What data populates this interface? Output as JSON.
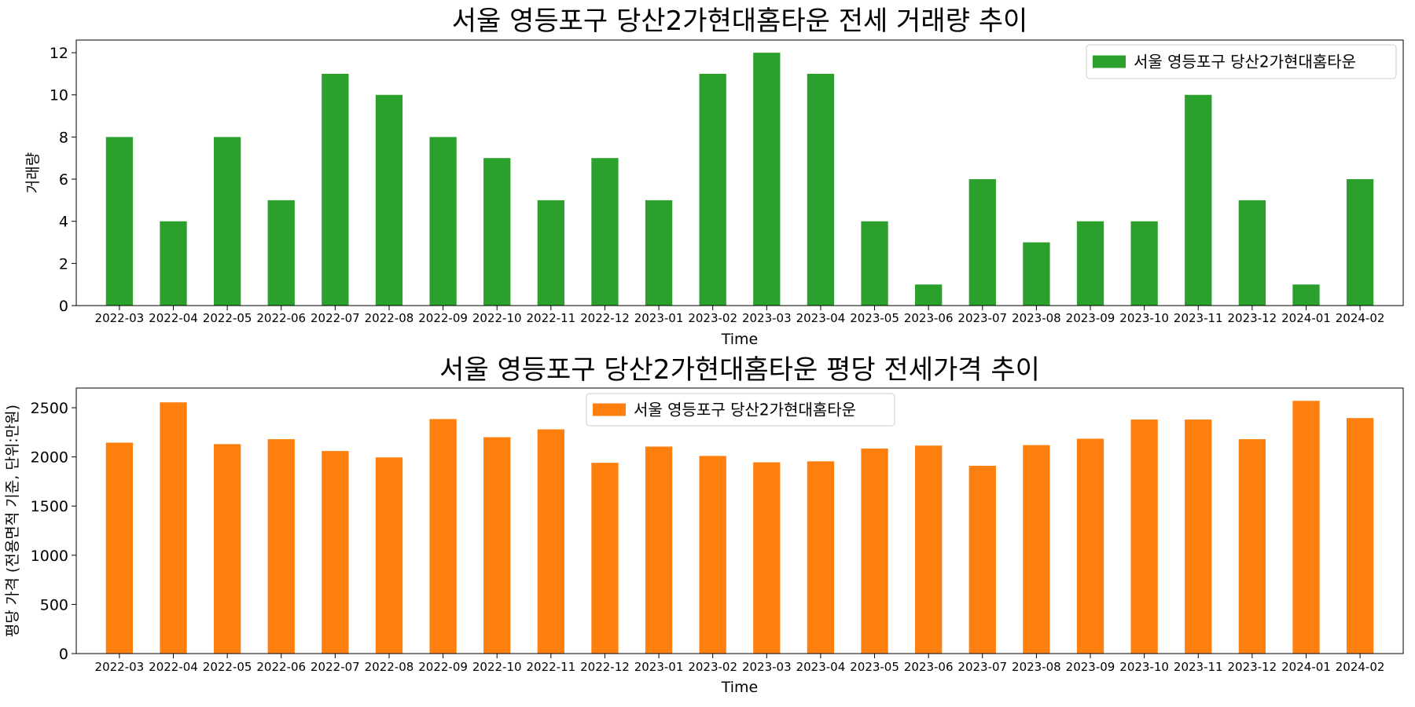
{
  "chart_data": [
    {
      "type": "bar",
      "title": "서울 영등포구 당산2가현대홈타운 전세 거래량 추이",
      "xlabel": "Time",
      "ylabel": "거래량",
      "ylim": [
        0,
        12.6
      ],
      "yticks": [
        0,
        2,
        4,
        6,
        8,
        10,
        12
      ],
      "legend_placement": "upper right",
      "color": "#2ca02c",
      "categories": [
        "2022-03",
        "2022-04",
        "2022-05",
        "2022-06",
        "2022-07",
        "2022-08",
        "2022-09",
        "2022-10",
        "2022-11",
        "2022-12",
        "2023-01",
        "2023-02",
        "2023-03",
        "2023-04",
        "2023-05",
        "2023-06",
        "2023-07",
        "2023-08",
        "2023-09",
        "2023-10",
        "2023-11",
        "2023-12",
        "2024-01",
        "2024-02"
      ],
      "series": [
        {
          "name": "서울 영등포구 당산2가현대홈타운",
          "values": [
            8,
            4,
            8,
            5,
            11,
            10,
            8,
            7,
            5,
            7,
            5,
            11,
            12,
            11,
            4,
            1,
            6,
            3,
            4,
            4,
            10,
            5,
            1,
            6
          ]
        }
      ]
    },
    {
      "type": "bar",
      "title": "서울 영등포구 당산2가현대홈타운 평당 전세가격 추이",
      "xlabel": "Time",
      "ylabel": "평당 가격 (전용면적 기준, 단위:만원)",
      "ylim": [
        0,
        2700
      ],
      "yticks": [
        0,
        500,
        1000,
        1500,
        2000,
        2500
      ],
      "legend_placement": "upper center",
      "color": "#ff7f0e",
      "categories": [
        "2022-03",
        "2022-04",
        "2022-05",
        "2022-06",
        "2022-07",
        "2022-08",
        "2022-09",
        "2022-10",
        "2022-11",
        "2022-12",
        "2023-01",
        "2023-02",
        "2023-03",
        "2023-04",
        "2023-05",
        "2023-06",
        "2023-07",
        "2023-08",
        "2023-09",
        "2023-10",
        "2023-11",
        "2023-12",
        "2024-01",
        "2024-02"
      ],
      "series": [
        {
          "name": "서울 영등포구 당산2가현대홈타운",
          "values": [
            2145,
            2555,
            2130,
            2180,
            2060,
            1995,
            2385,
            2200,
            2280,
            1940,
            2105,
            2010,
            1945,
            1955,
            2085,
            2115,
            1910,
            2120,
            2185,
            2380,
            2380,
            2180,
            2570,
            2395
          ]
        }
      ]
    }
  ]
}
